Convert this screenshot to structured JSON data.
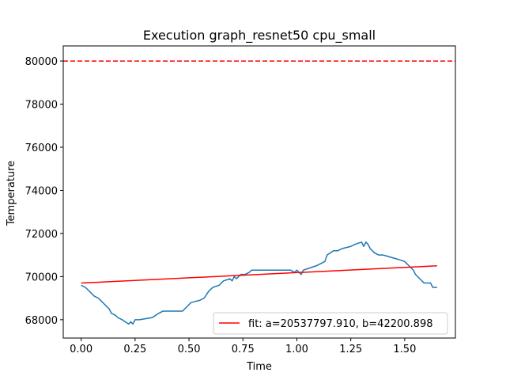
{
  "chart_data": {
    "type": "line",
    "title": "Execution graph_resnet50 cpu_small",
    "xlabel": "Time",
    "ylabel": "Temperature",
    "xlim": [
      -0.083,
      1.735
    ],
    "ylim": [
      67150,
      80700
    ],
    "xticks": [
      0.0,
      0.25,
      0.5,
      0.75,
      1.0,
      1.25,
      1.5
    ],
    "xtick_labels": [
      "0.00",
      "0.25",
      "0.50",
      "0.75",
      "1.00",
      "1.25",
      "1.50"
    ],
    "yticks": [
      68000,
      70000,
      72000,
      74000,
      76000,
      78000,
      80000
    ],
    "ytick_labels": [
      "68000",
      "70000",
      "72000",
      "74000",
      "76000",
      "78000",
      "80000"
    ],
    "grid": false,
    "legend_position": "lower-right",
    "threshold": {
      "y": 80000,
      "color": "#ff0000",
      "style": "dashed"
    },
    "series": [
      {
        "color": "#1f77b4",
        "style": "solid",
        "x": [
          0.0,
          0.02,
          0.03,
          0.05,
          0.06,
          0.08,
          0.09,
          0.11,
          0.13,
          0.14,
          0.16,
          0.17,
          0.19,
          0.22,
          0.23,
          0.24,
          0.25,
          0.27,
          0.33,
          0.36,
          0.38,
          0.47,
          0.49,
          0.51,
          0.55,
          0.57,
          0.59,
          0.61,
          0.64,
          0.66,
          0.69,
          0.7,
          0.71,
          0.72,
          0.74,
          0.76,
          0.78,
          0.79,
          0.97,
          0.99,
          1.0,
          1.02,
          1.03,
          1.06,
          1.09,
          1.13,
          1.14,
          1.17,
          1.19,
          1.21,
          1.25,
          1.27,
          1.3,
          1.31,
          1.32,
          1.33,
          1.34,
          1.35,
          1.36,
          1.38,
          1.4,
          1.47,
          1.5,
          1.52,
          1.54,
          1.55,
          1.57,
          1.59,
          1.62,
          1.63,
          1.65
        ],
        "y": [
          69600,
          69500,
          69400,
          69200,
          69100,
          69000,
          68900,
          68700,
          68500,
          68300,
          68200,
          68100,
          68000,
          67800,
          67900,
          67800,
          68000,
          68000,
          68100,
          68300,
          68400,
          68400,
          68600,
          68800,
          68900,
          69000,
          69300,
          69500,
          69600,
          69800,
          69900,
          69800,
          70000,
          69900,
          70100,
          70100,
          70200,
          70300,
          70300,
          70200,
          70300,
          70100,
          70300,
          70400,
          70500,
          70700,
          71000,
          71200,
          71200,
          71300,
          71400,
          71500,
          71600,
          71400,
          71600,
          71500,
          71300,
          71200,
          71100,
          71000,
          71000,
          70800,
          70700,
          70500,
          70300,
          70100,
          69900,
          69700,
          69700,
          69500,
          69500
        ]
      },
      {
        "name": "fit: a=20537797.910, b=42200.898",
        "color": "#ff0000",
        "style": "solid",
        "x": [
          0.0,
          1.65
        ],
        "y": [
          69700,
          70500
        ]
      }
    ]
  }
}
